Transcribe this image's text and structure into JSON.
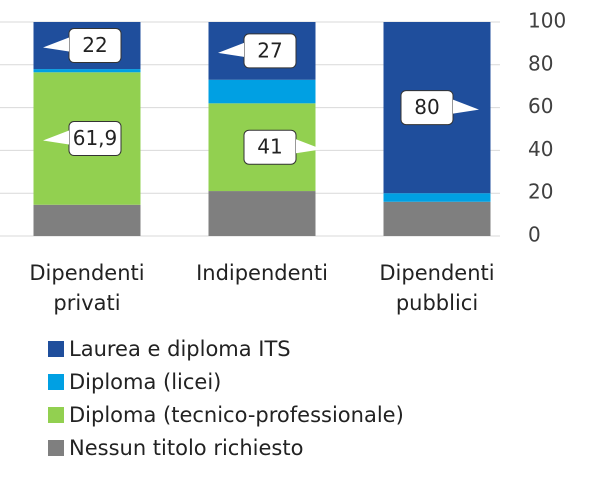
{
  "chart_data": {
    "type": "stacked_bar",
    "categories": [
      "Dipendenti privati",
      "Indipendenti",
      "Dipendenti pubblici"
    ],
    "series": [
      {
        "name": "Nessun titolo richiesto",
        "color": "#7f7f7f",
        "values": [
          14.6,
          21,
          16
        ]
      },
      {
        "name": "Diploma (tecnico-professionale)",
        "color": "#92d050",
        "values": [
          61.9,
          41,
          0
        ],
        "value_labels": [
          "61,9",
          "41",
          null
        ]
      },
      {
        "name": "Diploma (licei)",
        "color": "#00a0e3",
        "values": [
          1.5,
          11,
          4
        ]
      },
      {
        "name": "Laurea e diploma ITS",
        "color": "#1f4e9c",
        "values": [
          22,
          27,
          80
        ],
        "value_labels": [
          "22",
          "27",
          "80"
        ]
      }
    ],
    "ylim": [
      0,
      100
    ],
    "yticks": [
      0,
      20,
      40,
      60,
      80,
      100
    ],
    "grid": true
  }
}
